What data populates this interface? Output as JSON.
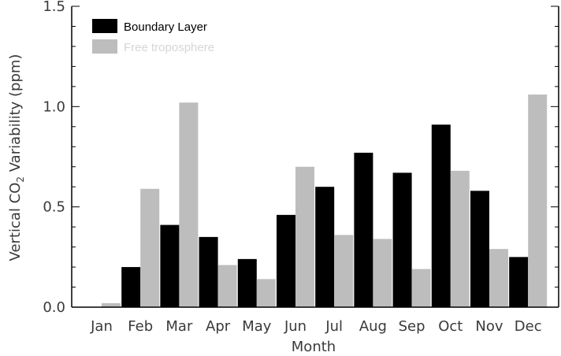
{
  "chart_data": {
    "type": "bar",
    "categories": [
      "Jan",
      "Feb",
      "Mar",
      "Apr",
      "May",
      "Jun",
      "Jul",
      "Aug",
      "Sep",
      "Oct",
      "Nov",
      "Dec"
    ],
    "series": [
      {
        "name": "Boundary Layer",
        "color": "#000000",
        "values": [
          0.0,
          0.2,
          0.41,
          0.35,
          0.24,
          0.46,
          0.6,
          0.77,
          0.67,
          0.91,
          0.58,
          0.25
        ]
      },
      {
        "name": "Free troposphere",
        "color": "#bdbdbd",
        "values": [
          0.02,
          0.59,
          1.02,
          0.21,
          0.14,
          0.7,
          0.36,
          0.34,
          0.19,
          0.68,
          0.29,
          1.06
        ]
      }
    ],
    "xlabel": "Month",
    "ylabel_main": "Vertical CO",
    "ylabel_sub": "2",
    "ylabel_tail": " Variability (ppm)",
    "ylim": [
      0,
      1.5
    ],
    "yticks": [
      0.0,
      0.5,
      1.0,
      1.5
    ],
    "ytick_labels": [
      "0.0",
      "0.5",
      "1.0",
      "1.5"
    ],
    "legend_placement": "top-left",
    "grid": false
  }
}
